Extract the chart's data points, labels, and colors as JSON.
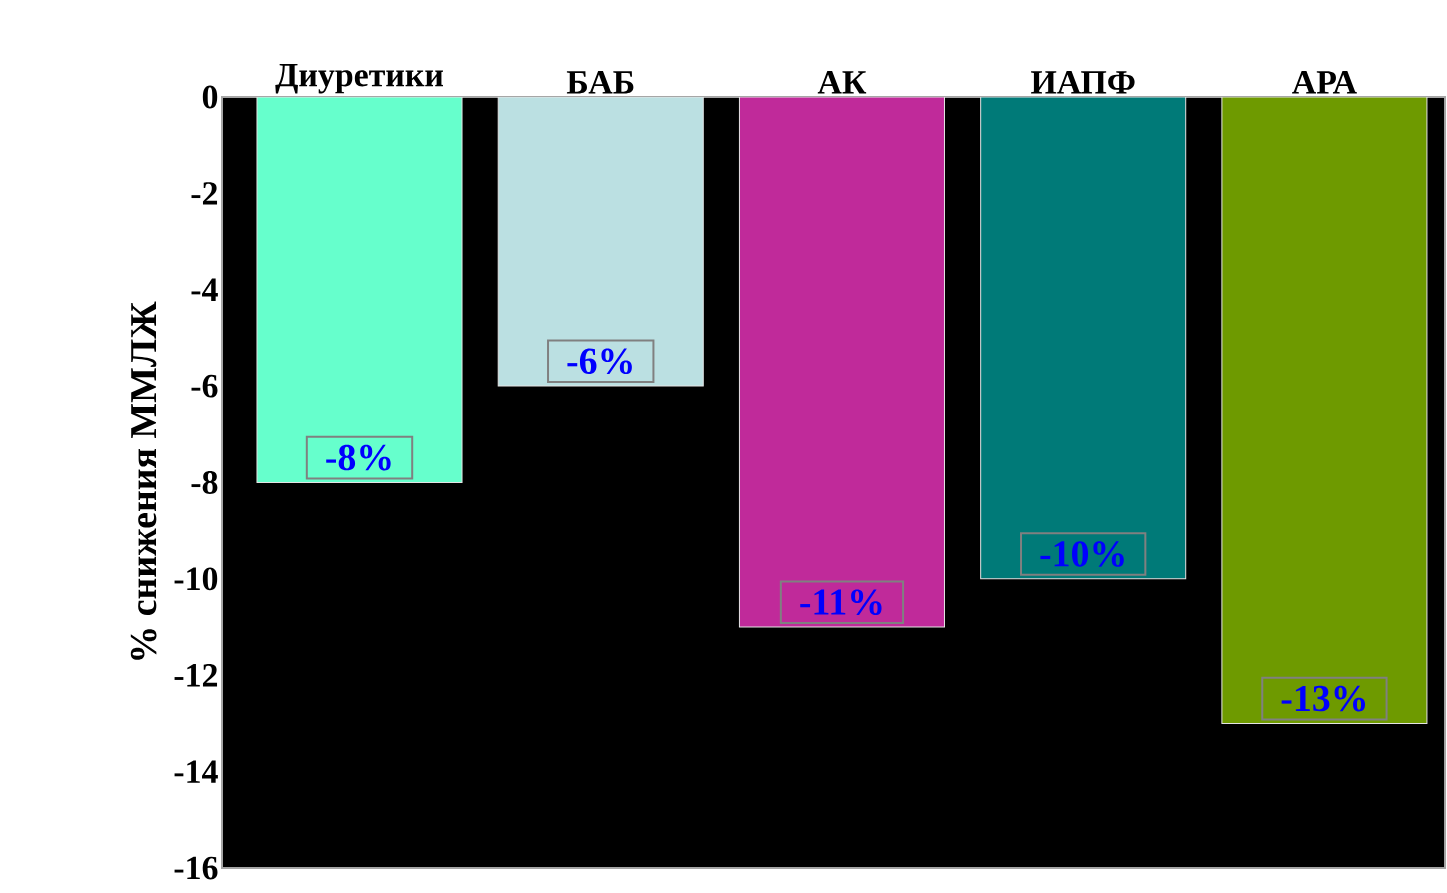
{
  "chart_data": {
    "type": "bar",
    "ylabel": "% снижения ММЛЖ",
    "categories": [
      "Диуретики",
      "БАБ",
      "АК",
      "ИАПФ",
      "АРА"
    ],
    "values": [
      -8,
      -6,
      -11,
      -10,
      -13
    ],
    "colors": [
      "#66ffcc",
      "#bbe0e2",
      "#c02a9a",
      "#007a78",
      "#6e9a00"
    ],
    "value_labels": [
      "-8%",
      "-6%",
      "-11%",
      "-10%",
      "-13%"
    ],
    "ylim": [
      -16,
      0
    ],
    "yticks": [
      0,
      -2,
      -4,
      -6,
      -8,
      -10,
      -12,
      -14,
      -16
    ]
  }
}
